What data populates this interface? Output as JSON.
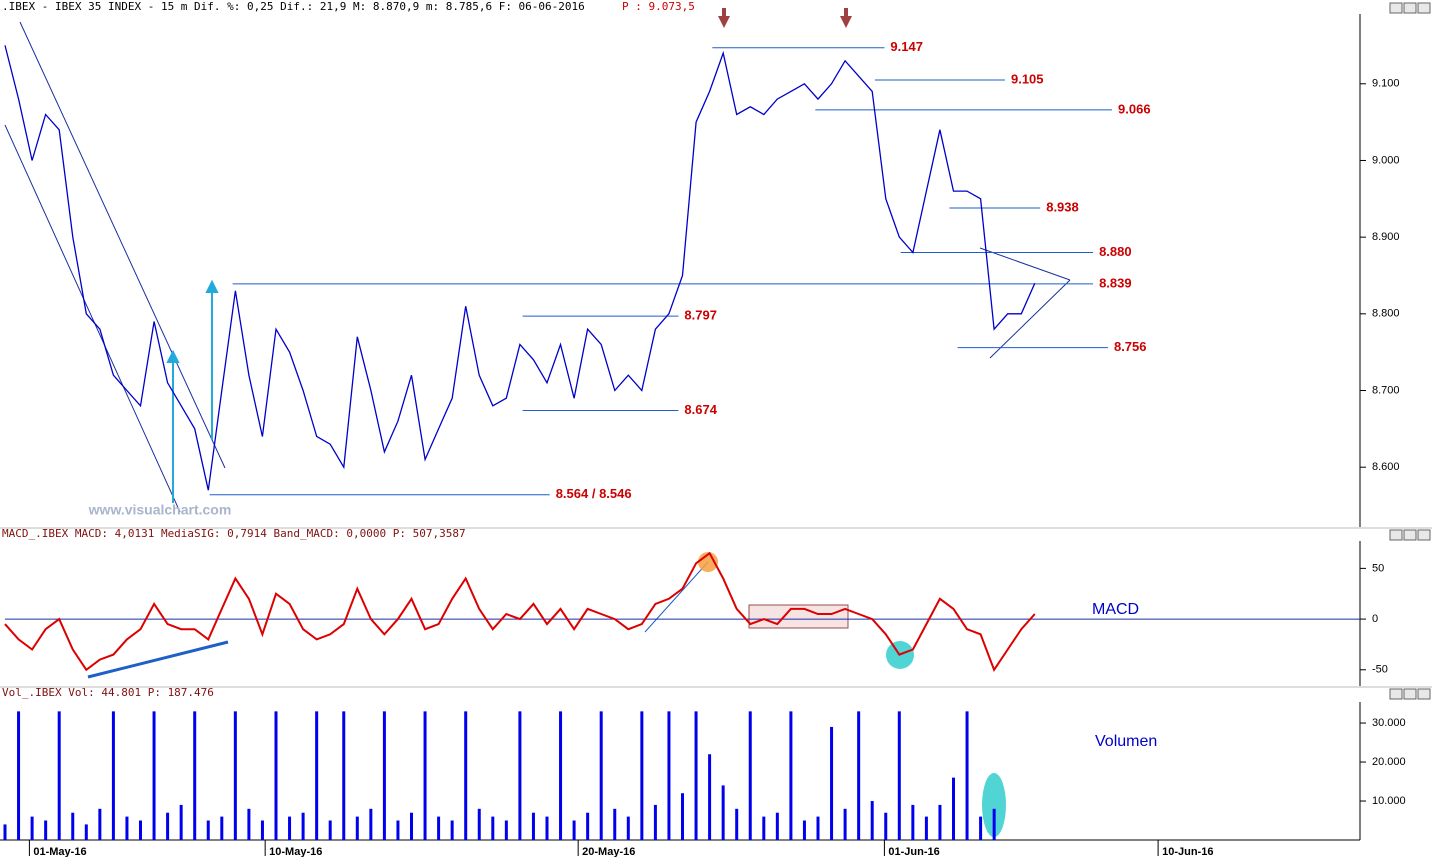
{
  "chart_data": [
    {
      "type": "line",
      "title": ".IBEX - IBEX 35 INDEX -  15 m Dif. %: 0,25 Dif.: 21,9 M: 8.870,9 m: 8.785,6 F: 06-06-2016",
      "last_price": "P : 9.073,5",
      "watermark": "www.visualchart.com",
      "xlim": [
        0,
        100
      ],
      "ylim": [
        8522,
        9191
      ],
      "yticks": [
        {
          "value": 8600,
          "label": "8.600"
        },
        {
          "value": 8700,
          "label": "8.700"
        },
        {
          "value": 8800,
          "label": "8.800"
        },
        {
          "value": 8900,
          "label": "8.900"
        },
        {
          "value": 9000,
          "label": "9.000"
        },
        {
          "value": 9100,
          "label": "9.100"
        }
      ],
      "series": [
        {
          "color": "#0000cc",
          "values": [
            9150,
            9080,
            9000,
            9060,
            9040,
            8900,
            8800,
            8780,
            8720,
            8700,
            8680,
            8790,
            8710,
            8680,
            8650,
            8570,
            8700,
            8830,
            8720,
            8640,
            8780,
            8750,
            8700,
            8640,
            8630,
            8600,
            8770,
            8700,
            8620,
            8660,
            8720,
            8610,
            8650,
            8690,
            8810,
            8720,
            8680,
            8690,
            8760,
            8740,
            8710,
            8760,
            8690,
            8780,
            8760,
            8700,
            8720,
            8700,
            8780,
            8800,
            8850,
            9050,
            9090,
            9140,
            9060,
            9070,
            9060,
            9080,
            9090,
            9100,
            9080,
            9100,
            9130,
            9110,
            9090,
            8950,
            8900,
            8880,
            8960,
            9040,
            8960,
            8960,
            8950,
            8780,
            8800,
            8800,
            8840
          ]
        }
      ],
      "levels": [
        {
          "value": 9147,
          "label": "9.147",
          "x_range": [
            52.2,
            64.9
          ]
        },
        {
          "value": 9105,
          "label": "9.105",
          "x_range": [
            64.2,
            73.8
          ]
        },
        {
          "value": 9066,
          "label": "9.066",
          "x_range": [
            59.8,
            81.7
          ]
        },
        {
          "value": 8938,
          "label": "8.938",
          "x_range": [
            69.7,
            76.4
          ]
        },
        {
          "value": 8880,
          "label": "8.880",
          "x_range": [
            66.1,
            80.3
          ]
        },
        {
          "value": 8839,
          "label": "8.839",
          "x_range": [
            16.8,
            80.3
          ]
        },
        {
          "value": 8797,
          "label": "8.797",
          "x_range": [
            38.2,
            49.7
          ]
        },
        {
          "value": 8756,
          "label": "8.756",
          "x_range": [
            70.3,
            81.4
          ]
        },
        {
          "value": 8674,
          "label": "8.674",
          "x_range": [
            38.2,
            49.7
          ]
        },
        {
          "value": 8564,
          "label": "8.564 / 8.546",
          "x_range": [
            15.1,
            40.2
          ]
        }
      ]
    },
    {
      "type": "line",
      "title": "MACD_.IBEX MACD: 4,0131 MediaSIG: 0,7914 Band_MACD: 0,0000 P: 507,3587",
      "panel_label": "MACD",
      "xlim": [
        0,
        100
      ],
      "ylim": [
        -66,
        77
      ],
      "yticks": [
        -50,
        0,
        50
      ],
      "series": [
        {
          "color": "#dd0000",
          "values": [
            -5,
            -20,
            -30,
            -10,
            0,
            -30,
            -50,
            -40,
            -35,
            -20,
            -10,
            15,
            -5,
            -10,
            -10,
            -20,
            10,
            40,
            20,
            -15,
            25,
            15,
            -10,
            -20,
            -15,
            -5,
            30,
            0,
            -15,
            0,
            20,
            -10,
            -5,
            20,
            40,
            10,
            -10,
            5,
            0,
            15,
            -5,
            10,
            -10,
            10,
            5,
            0,
            -10,
            -5,
            15,
            20,
            30,
            55,
            65,
            40,
            10,
            -5,
            0,
            -5,
            10,
            10,
            5,
            5,
            10,
            5,
            0,
            -15,
            -35,
            -30,
            -5,
            20,
            10,
            -10,
            -15,
            -50,
            -30,
            -10,
            5
          ]
        }
      ]
    },
    {
      "type": "bar",
      "title": "Vol_.IBEX Vol: 44.801 P: 187.476",
      "panel_label": "Volumen",
      "xlim": [
        0,
        100
      ],
      "ylim": [
        0,
        35400
      ],
      "yticks": [
        {
          "value": 10000,
          "label": "10.000"
        },
        {
          "value": 20000,
          "label": "20.000"
        },
        {
          "value": 30000,
          "label": "30.000"
        }
      ],
      "xticks": [
        {
          "value": 1.8,
          "label": "01-May-16"
        },
        {
          "value": 19.2,
          "label": "10-May-16"
        },
        {
          "value": 42.3,
          "label": "20-May-16"
        },
        {
          "value": 64.9,
          "label": "01-Jun-16"
        },
        {
          "value": 85.1,
          "label": "10-Jun-16"
        }
      ],
      "series": [
        {
          "color": "#0000ee",
          "values": [
            4000,
            33000,
            6000,
            5000,
            33000,
            7000,
            4000,
            8000,
            33000,
            6000,
            5000,
            33000,
            7000,
            9000,
            33000,
            5000,
            6000,
            33000,
            8000,
            5000,
            33000,
            6000,
            7000,
            33000,
            5000,
            33000,
            6000,
            8000,
            33000,
            5000,
            7000,
            33000,
            6000,
            5000,
            33000,
            8000,
            6000,
            5000,
            33000,
            7000,
            6000,
            33000,
            5000,
            7000,
            33000,
            8000,
            6000,
            33000,
            9000,
            33000,
            12000,
            33000,
            22000,
            14000,
            8000,
            33000,
            6000,
            7000,
            33000,
            5000,
            6000,
            29000,
            8000,
            33000,
            10000,
            7000,
            33000,
            9000,
            6000,
            9000,
            16000,
            33000,
            6000,
            8000
          ]
        }
      ]
    }
  ]
}
